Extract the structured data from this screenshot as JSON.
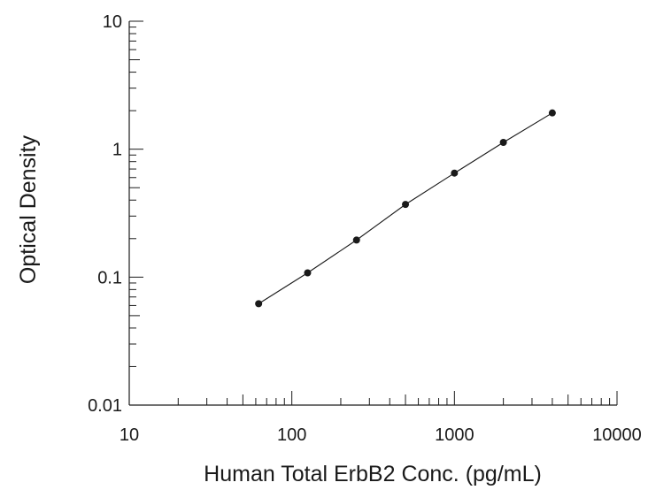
{
  "chart_data": {
    "type": "scatter",
    "xlabel": "Human Total ErbB2 Conc. (pg/mL)",
    "ylabel": "Optical Density",
    "xscale": "log",
    "yscale": "log",
    "xlim": [
      10,
      10000
    ],
    "ylim": [
      0.01,
      10
    ],
    "x_tick_labels": [
      "10",
      "100",
      "1000",
      "10000"
    ],
    "y_tick_labels": [
      "0.01",
      "0.1",
      "1",
      "10"
    ],
    "grid": false,
    "legend": "none",
    "series": [
      {
        "x": [
          62.5,
          125,
          250,
          500,
          1000,
          2000,
          4000
        ],
        "y": [
          0.062,
          0.108,
          0.195,
          0.37,
          0.65,
          1.13,
          1.92
        ],
        "fit_line": true
      }
    ]
  }
}
